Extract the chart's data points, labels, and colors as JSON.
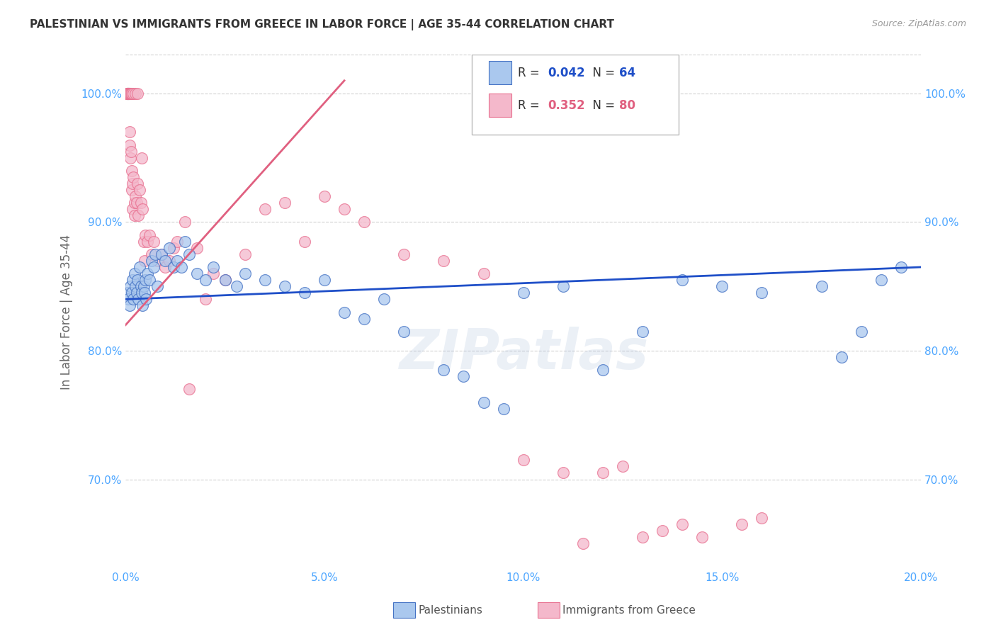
{
  "title": "PALESTINIAN VS IMMIGRANTS FROM GREECE IN LABOR FORCE | AGE 35-44 CORRELATION CHART",
  "source": "Source: ZipAtlas.com",
  "xlabel_vals": [
    0.0,
    5.0,
    10.0,
    15.0,
    20.0
  ],
  "ylabel_vals": [
    70.0,
    80.0,
    90.0,
    100.0
  ],
  "ylabel": "In Labor Force | Age 35-44",
  "xlim": [
    0.0,
    20.0
  ],
  "ylim": [
    63.0,
    103.0
  ],
  "blue_R": 0.042,
  "blue_N": 64,
  "pink_R": 0.352,
  "pink_N": 80,
  "blue_color": "#aac8ee",
  "pink_color": "#f4b8cb",
  "blue_edge_color": "#4472c4",
  "pink_edge_color": "#e87090",
  "blue_line_color": "#1f4fc8",
  "pink_line_color": "#e06080",
  "legend_label_blue": "Palestinians",
  "legend_label_pink": "Immigrants from Greece",
  "watermark": "ZIPatlas",
  "tick_color": "#4da6ff",
  "blue_x": [
    0.05,
    0.07,
    0.1,
    0.12,
    0.15,
    0.18,
    0.2,
    0.22,
    0.25,
    0.28,
    0.3,
    0.32,
    0.35,
    0.38,
    0.4,
    0.42,
    0.45,
    0.48,
    0.5,
    0.52,
    0.55,
    0.6,
    0.65,
    0.7,
    0.75,
    0.8,
    0.9,
    1.0,
    1.1,
    1.2,
    1.3,
    1.4,
    1.5,
    1.6,
    1.8,
    2.0,
    2.2,
    2.5,
    2.8,
    3.0,
    3.5,
    4.0,
    4.5,
    5.0,
    5.5,
    6.0,
    6.5,
    7.0,
    8.0,
    8.5,
    9.0,
    9.5,
    10.0,
    11.0,
    12.0,
    13.0,
    14.0,
    15.0,
    16.0,
    17.5,
    18.0,
    18.5,
    19.0,
    19.5
  ],
  "blue_y": [
    84.5,
    84.0,
    83.5,
    85.0,
    84.5,
    85.5,
    84.0,
    86.0,
    85.0,
    84.5,
    85.5,
    84.0,
    86.5,
    85.0,
    84.5,
    83.5,
    85.0,
    84.5,
    85.5,
    84.0,
    86.0,
    85.5,
    87.0,
    86.5,
    87.5,
    85.0,
    87.5,
    87.0,
    88.0,
    86.5,
    87.0,
    86.5,
    88.5,
    87.5,
    86.0,
    85.5,
    86.5,
    85.5,
    85.0,
    86.0,
    85.5,
    85.0,
    84.5,
    85.5,
    83.0,
    82.5,
    84.0,
    81.5,
    78.5,
    78.0,
    76.0,
    75.5,
    84.5,
    85.0,
    78.5,
    81.5,
    85.5,
    85.0,
    84.5,
    85.0,
    79.5,
    81.5,
    85.5,
    86.5
  ],
  "pink_x": [
    0.03,
    0.04,
    0.05,
    0.05,
    0.05,
    0.05,
    0.05,
    0.06,
    0.07,
    0.07,
    0.08,
    0.08,
    0.09,
    0.1,
    0.1,
    0.1,
    0.11,
    0.12,
    0.12,
    0.13,
    0.14,
    0.15,
    0.15,
    0.16,
    0.17,
    0.18,
    0.2,
    0.2,
    0.22,
    0.22,
    0.25,
    0.25,
    0.28,
    0.3,
    0.3,
    0.32,
    0.35,
    0.38,
    0.4,
    0.42,
    0.45,
    0.48,
    0.5,
    0.55,
    0.6,
    0.65,
    0.7,
    0.8,
    0.9,
    1.0,
    1.1,
    1.2,
    1.3,
    1.5,
    1.6,
    1.8,
    2.0,
    2.2,
    2.5,
    3.0,
    3.5,
    4.0,
    4.5,
    5.0,
    5.5,
    6.0,
    7.0,
    8.0,
    9.0,
    10.0,
    11.0,
    11.5,
    12.0,
    12.5,
    13.0,
    13.5,
    14.0,
    14.5,
    15.5,
    16.0
  ],
  "pink_y": [
    100.0,
    100.0,
    100.0,
    100.0,
    100.0,
    100.0,
    100.0,
    100.0,
    100.0,
    100.0,
    100.0,
    100.0,
    100.0,
    100.0,
    100.0,
    97.0,
    96.0,
    100.0,
    95.0,
    95.5,
    100.0,
    100.0,
    94.0,
    92.5,
    93.0,
    91.0,
    100.0,
    93.5,
    91.5,
    90.5,
    100.0,
    92.0,
    91.5,
    100.0,
    93.0,
    90.5,
    92.5,
    91.5,
    95.0,
    91.0,
    88.5,
    87.0,
    89.0,
    88.5,
    89.0,
    87.5,
    88.5,
    87.0,
    87.5,
    86.5,
    87.0,
    88.0,
    88.5,
    90.0,
    77.0,
    88.0,
    84.0,
    86.0,
    85.5,
    87.5,
    91.0,
    91.5,
    88.5,
    92.0,
    91.0,
    90.0,
    87.5,
    87.0,
    86.0,
    71.5,
    70.5,
    65.0,
    70.5,
    71.0,
    65.5,
    66.0,
    66.5,
    65.5,
    66.5,
    67.0
  ],
  "blue_trend_x0": 0.0,
  "blue_trend_y0": 84.0,
  "blue_trend_x1": 20.0,
  "blue_trend_y1": 86.5,
  "pink_trend_x0": 0.0,
  "pink_trend_y0": 82.0,
  "pink_trend_x1": 5.5,
  "pink_trend_y1": 101.0
}
